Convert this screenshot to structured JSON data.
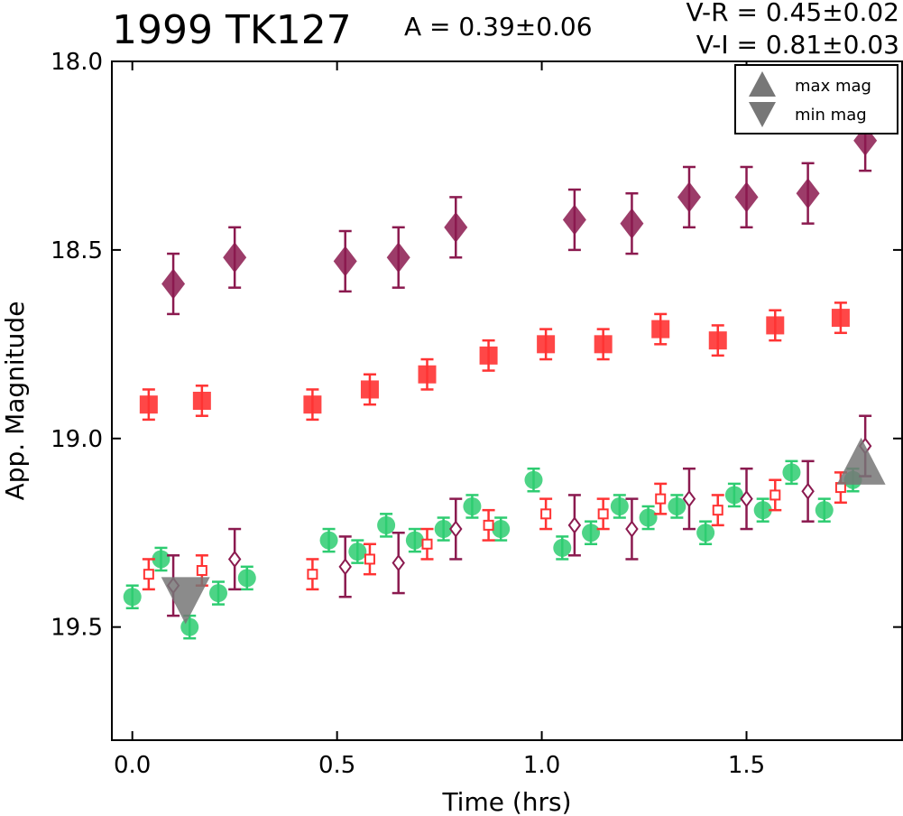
{
  "header": {
    "title": "1999 TK127",
    "amplitude": "A  = 0.39±0.06",
    "color_vr": "V-R = 0.45±0.02",
    "color_vi": "V-I  = 0.81±0.03"
  },
  "chart_data": {
    "type": "scatter",
    "xlabel": "Time (hrs)",
    "ylabel": "App. Magnitude",
    "xlim": [
      -0.05,
      1.88
    ],
    "ylim": [
      19.8,
      18.0
    ],
    "y_inverted": true,
    "xticks": [
      0.0,
      0.5,
      1.0,
      1.5
    ],
    "xtick_labels": [
      "0.0",
      "0.5",
      "1.0",
      "1.5"
    ],
    "yticks": [
      18.0,
      18.5,
      19.0,
      19.5
    ],
    "ytick_labels": [
      "18.0",
      "18.5",
      "19.0",
      "19.5"
    ],
    "grid": false,
    "legend": {
      "position": "top-right",
      "entries": [
        {
          "label": "max mag",
          "marker": "triangle-up",
          "color": "#777777"
        },
        {
          "label": "min mag",
          "marker": "triangle-down",
          "color": "#777777"
        }
      ]
    },
    "colors": {
      "green": "#2ecc71",
      "red": "#ff3333",
      "purple": "#8b1a4f",
      "gray": "#777777"
    },
    "series": [
      {
        "marker": "diamond-filled",
        "color": "#8b1a4f",
        "points": [
          {
            "x": 0.1,
            "y": 18.59,
            "err": 0.08
          },
          {
            "x": 0.25,
            "y": 18.52,
            "err": 0.08
          },
          {
            "x": 0.52,
            "y": 18.53,
            "err": 0.08
          },
          {
            "x": 0.65,
            "y": 18.52,
            "err": 0.08
          },
          {
            "x": 0.79,
            "y": 18.44,
            "err": 0.08
          },
          {
            "x": 1.08,
            "y": 18.42,
            "err": 0.08
          },
          {
            "x": 1.22,
            "y": 18.43,
            "err": 0.08
          },
          {
            "x": 1.36,
            "y": 18.36,
            "err": 0.08
          },
          {
            "x": 1.5,
            "y": 18.36,
            "err": 0.08
          },
          {
            "x": 1.65,
            "y": 18.35,
            "err": 0.08
          },
          {
            "x": 1.79,
            "y": 18.21,
            "err": 0.08
          }
        ]
      },
      {
        "marker": "square-filled",
        "color": "#ff3333",
        "points": [
          {
            "x": 0.04,
            "y": 18.91,
            "err": 0.04
          },
          {
            "x": 0.17,
            "y": 18.9,
            "err": 0.04
          },
          {
            "x": 0.44,
            "y": 18.91,
            "err": 0.04
          },
          {
            "x": 0.58,
            "y": 18.87,
            "err": 0.04
          },
          {
            "x": 0.72,
            "y": 18.83,
            "err": 0.04
          },
          {
            "x": 0.87,
            "y": 18.78,
            "err": 0.04
          },
          {
            "x": 1.01,
            "y": 18.75,
            "err": 0.04
          },
          {
            "x": 1.15,
            "y": 18.75,
            "err": 0.04
          },
          {
            "x": 1.29,
            "y": 18.71,
            "err": 0.04
          },
          {
            "x": 1.43,
            "y": 18.74,
            "err": 0.04
          },
          {
            "x": 1.57,
            "y": 18.7,
            "err": 0.04
          },
          {
            "x": 1.73,
            "y": 18.68,
            "err": 0.04
          }
        ]
      },
      {
        "marker": "circle-filled",
        "color": "#2ecc71",
        "points": [
          {
            "x": 0.0,
            "y": 19.42,
            "err": 0.03
          },
          {
            "x": 0.07,
            "y": 19.32,
            "err": 0.03
          },
          {
            "x": 0.14,
            "y": 19.5,
            "err": 0.03
          },
          {
            "x": 0.21,
            "y": 19.41,
            "err": 0.03
          },
          {
            "x": 0.28,
            "y": 19.37,
            "err": 0.03
          },
          {
            "x": 0.48,
            "y": 19.27,
            "err": 0.03
          },
          {
            "x": 0.55,
            "y": 19.3,
            "err": 0.03
          },
          {
            "x": 0.62,
            "y": 19.23,
            "err": 0.03
          },
          {
            "x": 0.69,
            "y": 19.27,
            "err": 0.03
          },
          {
            "x": 0.76,
            "y": 19.24,
            "err": 0.03
          },
          {
            "x": 0.83,
            "y": 19.18,
            "err": 0.03
          },
          {
            "x": 0.9,
            "y": 19.24,
            "err": 0.03
          },
          {
            "x": 0.98,
            "y": 19.11,
            "err": 0.03
          },
          {
            "x": 1.05,
            "y": 19.29,
            "err": 0.03
          },
          {
            "x": 1.12,
            "y": 19.25,
            "err": 0.03
          },
          {
            "x": 1.19,
            "y": 19.18,
            "err": 0.03
          },
          {
            "x": 1.26,
            "y": 19.21,
            "err": 0.03
          },
          {
            "x": 1.33,
            "y": 19.18,
            "err": 0.03
          },
          {
            "x": 1.4,
            "y": 19.25,
            "err": 0.03
          },
          {
            "x": 1.47,
            "y": 19.15,
            "err": 0.03
          },
          {
            "x": 1.54,
            "y": 19.19,
            "err": 0.03
          },
          {
            "x": 1.61,
            "y": 19.09,
            "err": 0.03
          },
          {
            "x": 1.69,
            "y": 19.19,
            "err": 0.03
          },
          {
            "x": 1.76,
            "y": 19.11,
            "err": 0.03
          }
        ]
      },
      {
        "marker": "square-open",
        "color": "#ff3333",
        "points": [
          {
            "x": 0.04,
            "y": 19.36,
            "err": 0.04
          },
          {
            "x": 0.17,
            "y": 19.35,
            "err": 0.04
          },
          {
            "x": 0.44,
            "y": 19.36,
            "err": 0.04
          },
          {
            "x": 0.58,
            "y": 19.32,
            "err": 0.04
          },
          {
            "x": 0.72,
            "y": 19.28,
            "err": 0.04
          },
          {
            "x": 0.87,
            "y": 19.23,
            "err": 0.04
          },
          {
            "x": 1.01,
            "y": 19.2,
            "err": 0.04
          },
          {
            "x": 1.15,
            "y": 19.2,
            "err": 0.04
          },
          {
            "x": 1.29,
            "y": 19.16,
            "err": 0.04
          },
          {
            "x": 1.43,
            "y": 19.19,
            "err": 0.04
          },
          {
            "x": 1.57,
            "y": 19.15,
            "err": 0.04
          },
          {
            "x": 1.73,
            "y": 19.13,
            "err": 0.04
          }
        ]
      },
      {
        "marker": "diamond-open",
        "color": "#8b1a4f",
        "points": [
          {
            "x": 0.1,
            "y": 19.39,
            "err": 0.08
          },
          {
            "x": 0.25,
            "y": 19.32,
            "err": 0.08
          },
          {
            "x": 0.52,
            "y": 19.34,
            "err": 0.08
          },
          {
            "x": 0.65,
            "y": 19.33,
            "err": 0.08
          },
          {
            "x": 0.79,
            "y": 19.24,
            "err": 0.08
          },
          {
            "x": 1.08,
            "y": 19.23,
            "err": 0.08
          },
          {
            "x": 1.22,
            "y": 19.24,
            "err": 0.08
          },
          {
            "x": 1.36,
            "y": 19.16,
            "err": 0.08
          },
          {
            "x": 1.5,
            "y": 19.16,
            "err": 0.08
          },
          {
            "x": 1.65,
            "y": 19.14,
            "err": 0.08
          },
          {
            "x": 1.79,
            "y": 19.02,
            "err": 0.08
          }
        ]
      }
    ],
    "extremes": [
      {
        "type": "min",
        "x": 0.13,
        "y": 19.43
      },
      {
        "type": "max",
        "x": 1.78,
        "y": 19.06
      }
    ]
  }
}
